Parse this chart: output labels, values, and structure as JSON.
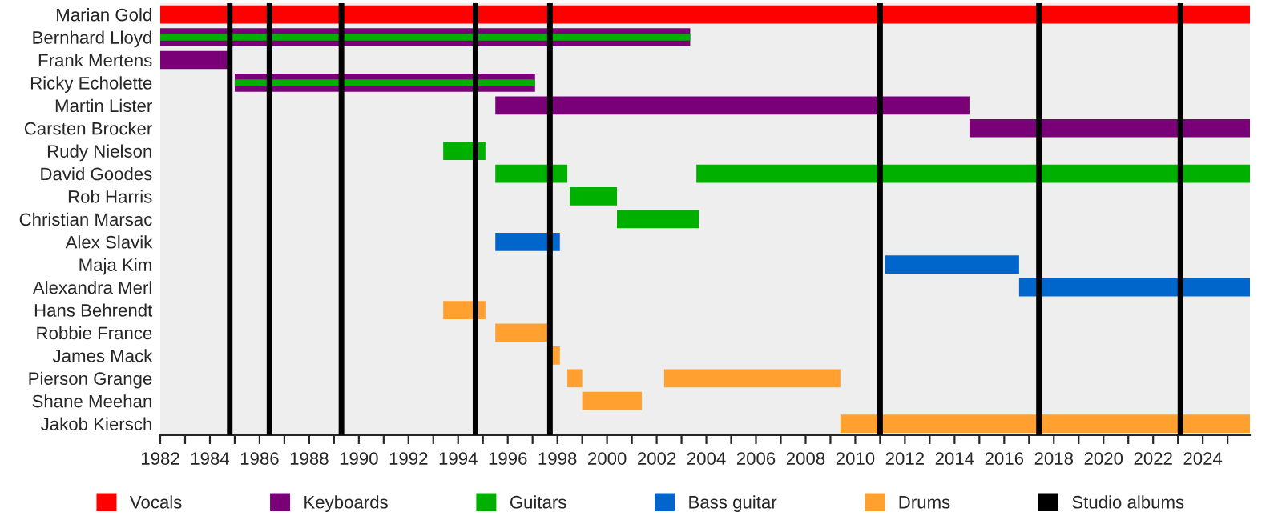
{
  "chart_data": {
    "type": "bar",
    "orientation": "horizontal",
    "legend": "bottom",
    "categories": [
      "Marian Gold",
      "Bernhard Lloyd",
      "Frank Mertens",
      "Ricky Echolette",
      "Martin Lister",
      "Carsten Brocker",
      "Rudy Nielson",
      "David Goodes",
      "Rob Harris",
      "Christian Marsac",
      "Alex Slavik",
      "Maja Kim",
      "Alexandra Merl",
      "Hans Behrendt",
      "Robbie France",
      "James Mack",
      "Pierson Grange",
      "Shane Meehan",
      "Jakob Kiersch"
    ],
    "series": [
      {
        "name": "Vocals",
        "color": "#ff0000",
        "base": [
          1982,
          null,
          null,
          null,
          null,
          null,
          null,
          null,
          null,
          null,
          null,
          null,
          null,
          null,
          null,
          null,
          null,
          null,
          null
        ],
        "values": [
          43.9,
          null,
          null,
          null,
          null,
          null,
          null,
          null,
          null,
          null,
          null,
          null,
          null,
          null,
          null,
          null,
          null,
          null,
          null
        ]
      },
      {
        "name": "Keyboards",
        "color": "#7a0078",
        "base": [
          null,
          1982,
          1982,
          1985.0,
          1995.5,
          2014.6,
          null,
          null,
          null,
          null,
          null,
          null,
          null,
          null,
          null,
          null,
          null,
          null,
          null
        ],
        "values": [
          null,
          21.35,
          2.8,
          12.1,
          19.1,
          11.3,
          null,
          null,
          null,
          null,
          null,
          null,
          null,
          null,
          null,
          null,
          null,
          null,
          null
        ]
      },
      {
        "name": "Guitars",
        "color": "#00b000",
        "base": [
          null,
          1982,
          null,
          1985.0,
          null,
          null,
          1993.4,
          1995.5,
          1998.5,
          2000.4,
          null,
          null,
          null,
          null,
          null,
          null,
          null,
          null,
          null
        ],
        "values": [
          null,
          21.35,
          null,
          12.1,
          null,
          null,
          1.7,
          2.9,
          1.9,
          3.3,
          null,
          null,
          null,
          null,
          null,
          null,
          null,
          null,
          null
        ]
      },
      {
        "color": "#00b000",
        "base": [
          null,
          null,
          null,
          null,
          null,
          null,
          null,
          2003.6,
          null,
          null,
          null,
          null,
          null,
          null,
          null,
          null,
          null,
          null,
          null
        ],
        "values": [
          null,
          null,
          null,
          null,
          null,
          null,
          null,
          22.3,
          null,
          null,
          null,
          null,
          null,
          null,
          null,
          null,
          null,
          null,
          null
        ]
      },
      {
        "name": "Bass guitar",
        "color": "#0066cc",
        "base": [
          null,
          null,
          null,
          null,
          null,
          null,
          null,
          null,
          null,
          null,
          1995.5,
          2011.2,
          2016.6,
          null,
          null,
          null,
          null,
          null,
          null
        ],
        "values": [
          null,
          null,
          null,
          null,
          null,
          null,
          null,
          null,
          null,
          null,
          2.6,
          5.4,
          9.3,
          null,
          null,
          null,
          null,
          null,
          null
        ]
      },
      {
        "name": "Drums",
        "color": "#ffa030",
        "base": [
          null,
          null,
          null,
          null,
          null,
          null,
          null,
          null,
          null,
          null,
          null,
          null,
          null,
          1993.4,
          1995.5,
          1997.6,
          1998.4,
          1999.0,
          2009.4
        ],
        "values": [
          null,
          null,
          null,
          null,
          null,
          null,
          null,
          null,
          null,
          null,
          null,
          null,
          null,
          1.7,
          2.1,
          0.5,
          0.6,
          2.4,
          16.5
        ]
      },
      {
        "color": "#ffa030",
        "base": [
          null,
          null,
          null,
          null,
          null,
          null,
          null,
          null,
          null,
          null,
          null,
          null,
          null,
          null,
          null,
          null,
          2002.3,
          null,
          null
        ],
        "values": [
          null,
          null,
          null,
          null,
          null,
          null,
          null,
          null,
          null,
          null,
          null,
          null,
          null,
          null,
          null,
          null,
          7.1,
          null,
          null
        ]
      }
    ],
    "ref_lines": [
      {
        "axis": "x",
        "value": 1984.8,
        "label": "Studio albums",
        "color": "#000000"
      },
      {
        "axis": "x",
        "value": 1986.4,
        "color": "#000000"
      },
      {
        "axis": "x",
        "value": 1989.3,
        "color": "#000000"
      },
      {
        "axis": "x",
        "value": 1994.7,
        "color": "#000000"
      },
      {
        "axis": "x",
        "value": 1997.7,
        "color": "#000000"
      },
      {
        "axis": "x",
        "value": 2011.0,
        "color": "#000000"
      },
      {
        "axis": "x",
        "value": 2017.4,
        "color": "#000000"
      },
      {
        "axis": "x",
        "value": 2023.1,
        "color": "#000000"
      }
    ],
    "xlim": [
      1982,
      2025.9
    ],
    "xticks": [
      1982,
      {
        "value": 1983,
        "label": null
      },
      1984,
      {
        "value": 1985,
        "label": null
      },
      1986,
      {
        "value": 1987,
        "label": null
      },
      1988,
      {
        "value": 1989,
        "label": null
      },
      1990,
      {
        "value": 1991,
        "label": null
      },
      1992,
      {
        "value": 1993,
        "label": null
      },
      1994,
      {
        "value": 1995,
        "label": null
      },
      1996,
      {
        "value": 1997,
        "label": null
      },
      1998,
      {
        "value": 1999,
        "label": null
      },
      2000,
      {
        "value": 2001,
        "label": null
      },
      2002,
      {
        "value": 2003,
        "label": null
      },
      2004,
      {
        "value": 2005,
        "label": null
      },
      2006,
      {
        "value": 2007,
        "label": null
      },
      2008,
      {
        "value": 2009,
        "label": null
      },
      2010,
      {
        "value": 2011,
        "label": null
      },
      2012,
      {
        "value": 2013,
        "label": null
      },
      2014,
      {
        "value": 2015,
        "label": null
      },
      2016,
      {
        "value": 2017,
        "label": null
      },
      2018,
      {
        "value": 2019,
        "label": null
      },
      2020,
      {
        "value": 2021,
        "label": null
      },
      2022,
      {
        "value": 2023,
        "label": null
      },
      2024,
      {
        "value": 2025,
        "label": null
      }
    ],
    "grid": false
  }
}
